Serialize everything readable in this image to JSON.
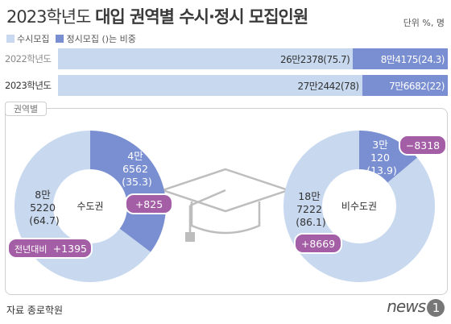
{
  "title_light": "2023학년도",
  "title_bold": "대입 권역별 수시·정시 모집인원",
  "unit": "단위 %, 명",
  "legend": {
    "susi": "수시모집",
    "jeongsi": "정시모집 ()는 비중"
  },
  "colors": {
    "susi": "#c7d8ef",
    "jeongsi": "#7a8fd1",
    "badge": "#a45ea6"
  },
  "panel_label": "권역별",
  "source": "자료 종로학원",
  "logo": {
    "text": "news",
    "mark": "1"
  },
  "chart_data": [
    {
      "type": "bar",
      "stacked": true,
      "orientation": "horizontal",
      "categories": [
        "2022학년도",
        "2023학년도"
      ],
      "series": [
        {
          "name": "수시모집",
          "values": [
            75.7,
            78
          ],
          "counts": [
            262378,
            272442
          ],
          "labels": [
            "26만2378(75.7)",
            "27만2442(78)"
          ]
        },
        {
          "name": "정시모집",
          "values": [
            24.3,
            22
          ],
          "counts": [
            84175,
            76682
          ],
          "labels": [
            "8만4175(24.3)",
            "7만6682(22)"
          ]
        }
      ]
    },
    {
      "type": "pie",
      "donut": true,
      "center_label": "수도권",
      "slices": [
        {
          "name": "수시모집",
          "value": 64.7,
          "count": 85220,
          "label_lines": [
            "8만",
            "5220",
            "(64.7)"
          ],
          "change": "+1395"
        },
        {
          "name": "정시모집",
          "value": 35.3,
          "count": 46562,
          "label_lines": [
            "4만",
            "6562",
            "(35.3)"
          ],
          "change": "+825"
        }
      ],
      "change_prefix": "전년대비"
    },
    {
      "type": "pie",
      "donut": true,
      "center_label": "비수도권",
      "slices": [
        {
          "name": "수시모집",
          "value": 86.1,
          "count": 187222,
          "label_lines": [
            "18만",
            "7222",
            "(86.1)"
          ],
          "change": "+8669"
        },
        {
          "name": "정시모집",
          "value": 13.9,
          "count": 30120,
          "label_lines": [
            "3만",
            "120",
            "(13.9)"
          ],
          "change": "−8318"
        }
      ]
    }
  ]
}
